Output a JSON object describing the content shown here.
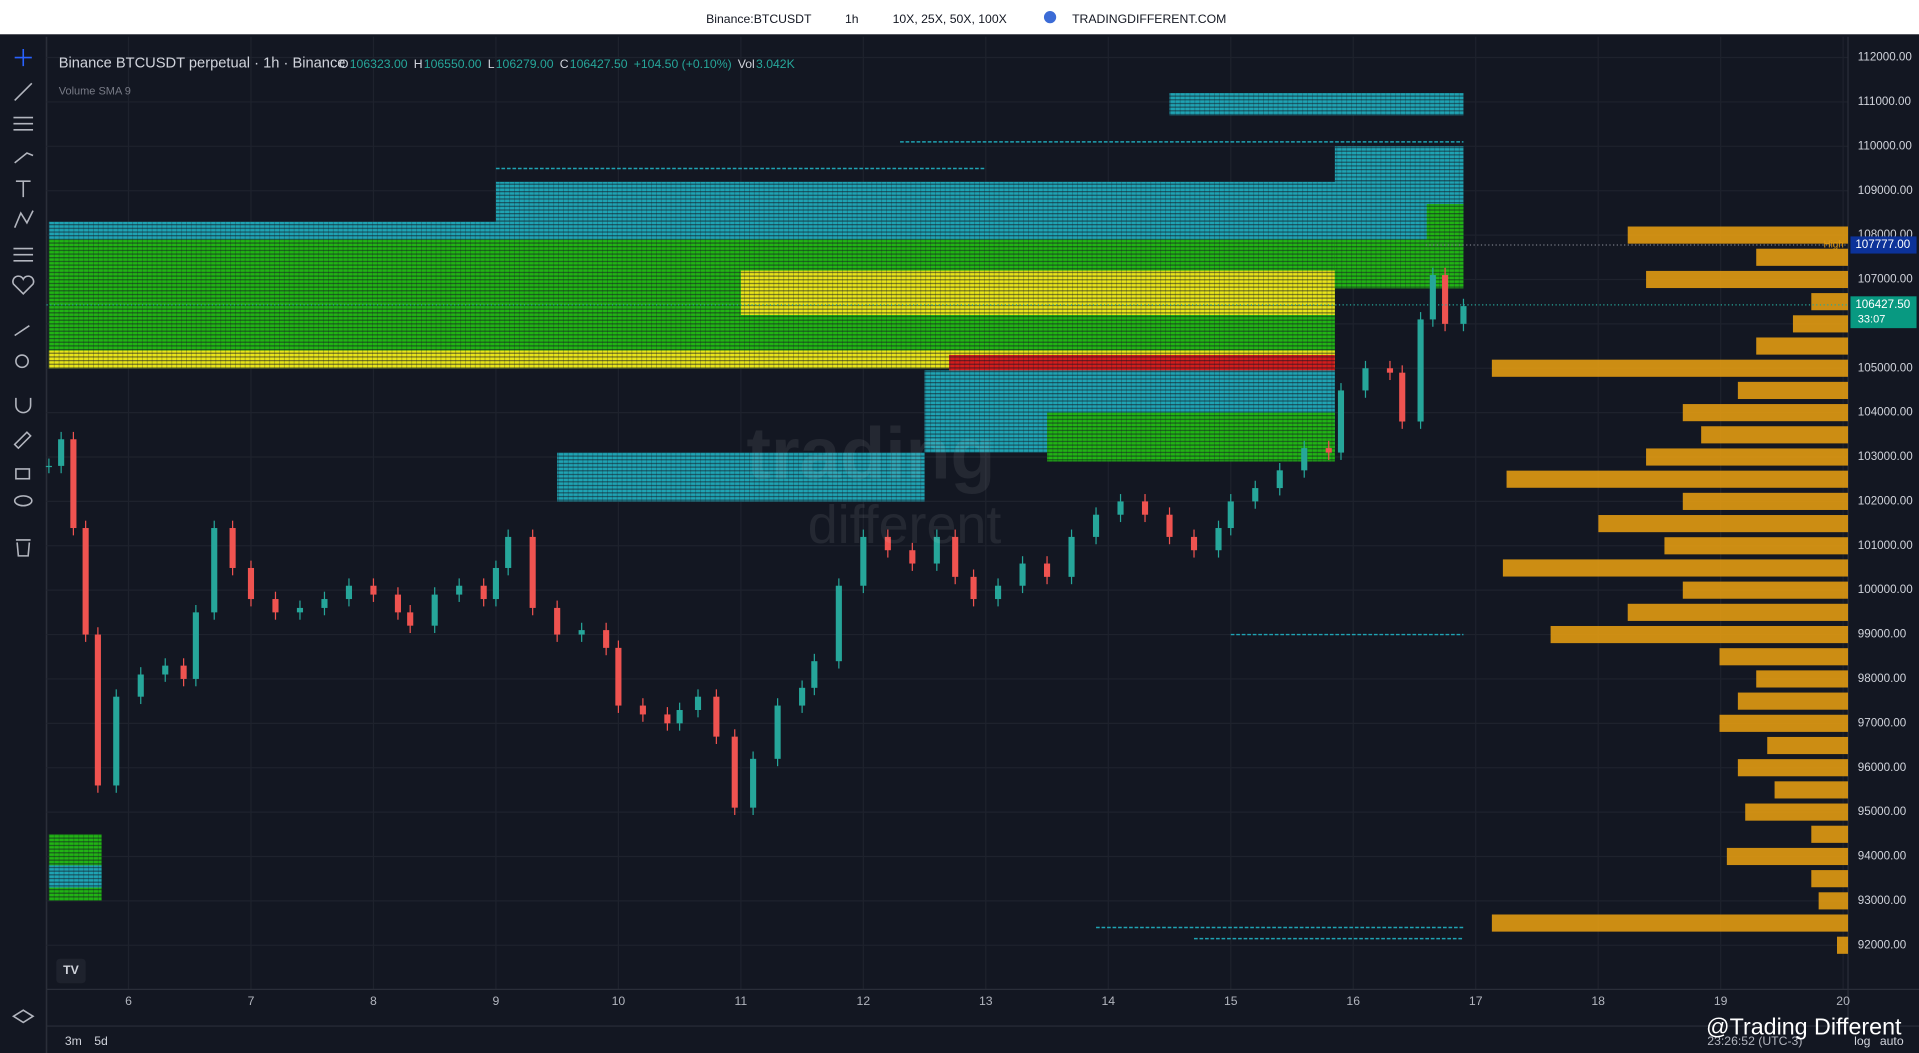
{
  "header": {
    "symbol": "Binance:BTCUSDT",
    "interval": "1h",
    "leverage": "10X, 25X, 50X, 100X",
    "site": "TRADINGDIFFERENT.COM"
  },
  "legend": {
    "title": "Binance BTCUSDT perpetual · 1h · Binance",
    "o_label": "O",
    "o": "106323.00",
    "h_label": "H",
    "h": "106550.00",
    "l_label": "L",
    "l": "106279.00",
    "c_label": "C",
    "c": "106427.50",
    "change": "+104.50 (+0.10%)",
    "vol_label": "Vol",
    "vol": "3.042K",
    "indicator": "Volume SMA 9"
  },
  "chart_data": {
    "type": "candlestick",
    "x": [
      5.35,
      5.45,
      5.55,
      5.65,
      5.75,
      5.9,
      6.1,
      6.3,
      6.45,
      6.55,
      6.7,
      6.85,
      7.0,
      7.2,
      7.4,
      7.6,
      7.8,
      8.0,
      8.2,
      8.3,
      8.5,
      8.7,
      8.9,
      9.0,
      9.1,
      9.3,
      9.5,
      9.7,
      9.9,
      10.0,
      10.2,
      10.4,
      10.5,
      10.65,
      10.8,
      10.95,
      11.1,
      11.3,
      11.5,
      11.6,
      11.8,
      12.0,
      12.2,
      12.4,
      12.6,
      12.75,
      12.9,
      13.1,
      13.3,
      13.5,
      13.7,
      13.9,
      14.1,
      14.3,
      14.5,
      14.7,
      14.9,
      15.0,
      15.2,
      15.4,
      15.6,
      15.8,
      15.9,
      16.1,
      16.3,
      16.4,
      16.55,
      16.65,
      16.75,
      16.9
    ],
    "close": [
      102800,
      103400,
      101400,
      99000,
      95600,
      97600,
      98100,
      98300,
      98000,
      99500,
      101400,
      100500,
      99800,
      99500,
      99600,
      99800,
      100100,
      99900,
      99500,
      99200,
      99900,
      100100,
      99800,
      100500,
      101200,
      99600,
      99000,
      99100,
      98700,
      97400,
      97200,
      97000,
      97300,
      97600,
      96700,
      95100,
      96200,
      97400,
      97800,
      98400,
      100100,
      101200,
      100900,
      100600,
      101200,
      100300,
      99800,
      100100,
      100600,
      100300,
      101200,
      101700,
      102000,
      101700,
      101200,
      100900,
      101400,
      102000,
      102300,
      102700,
      103200,
      103100,
      104500,
      105000,
      104900,
      103800,
      106100,
      107100,
      106000,
      106400
    ],
    "up_color": "#26a69a",
    "down_color": "#ef5350",
    "ylim": [
      92000,
      112000
    ],
    "yticks": [
      {
        "value": 92000,
        "label": "92000.00"
      },
      {
        "value": 93000,
        "label": "93000.00"
      },
      {
        "value": 94000,
        "label": "94000.00"
      },
      {
        "value": 95000,
        "label": "95000.00"
      },
      {
        "value": 96000,
        "label": "96000.00"
      },
      {
        "value": 97000,
        "label": "97000.00"
      },
      {
        "value": 98000,
        "label": "98000.00"
      },
      {
        "value": 99000,
        "label": "99000.00"
      },
      {
        "value": 100000,
        "label": "100000.00"
      },
      {
        "value": 101000,
        "label": "101000.00"
      },
      {
        "value": 102000,
        "label": "102000.00"
      },
      {
        "value": 103000,
        "label": "103000.00"
      },
      {
        "value": 104000,
        "label": "104000.00"
      },
      {
        "value": 105000,
        "label": "105000.00"
      },
      {
        "value": 106000,
        "label": "106000.00"
      },
      {
        "value": 107000,
        "label": "107000.00"
      },
      {
        "value": 108000,
        "label": "108000.00"
      },
      {
        "value": 109000,
        "label": "109000.00"
      },
      {
        "value": 110000,
        "label": "110000.00"
      },
      {
        "value": 111000,
        "label": "111000.00"
      },
      {
        "value": 112000,
        "label": "112000.00"
      }
    ],
    "xlim": [
      5.33,
      19.99
    ],
    "xticks": [
      6,
      7,
      8,
      9,
      10,
      11,
      12,
      13,
      14,
      15,
      16,
      17,
      18,
      19,
      20
    ],
    "heatmap": [
      {
        "from": 5.35,
        "to": 16.9,
        "low": 107900,
        "high": 108300,
        "color": "#1fa3b3"
      },
      {
        "from": 5.35,
        "to": 15.85,
        "low": 105000,
        "high": 107900,
        "color": "#21b414"
      },
      {
        "from": 5.35,
        "to": 15.85,
        "low": 105000,
        "high": 105400,
        "color": "#e8e41a"
      },
      {
        "from": 11,
        "to": 15.85,
        "low": 106200,
        "high": 107200,
        "color": "#e8e41a"
      },
      {
        "from": 12.7,
        "to": 15.85,
        "low": 104950,
        "high": 105300,
        "color": "#d31c1c"
      },
      {
        "from": 12.5,
        "to": 15.85,
        "low": 103100,
        "high": 104950,
        "color": "#1fa3b3"
      },
      {
        "from": 13.5,
        "to": 15.85,
        "low": 102900,
        "high": 104000,
        "color": "#21b414"
      },
      {
        "from": 9.5,
        "to": 12.5,
        "low": 102000,
        "high": 103100,
        "color": "#1fa3b3"
      },
      {
        "from": 9,
        "to": 16.9,
        "low": 108300,
        "high": 109200,
        "color": "#1fa3b3"
      },
      {
        "from": 14.5,
        "to": 16.9,
        "low": 110700,
        "high": 111200,
        "color": "#1fa3b3"
      },
      {
        "from": 15.85,
        "to": 16.9,
        "low": 109200,
        "high": 110000,
        "color": "#1fa3b3"
      },
      {
        "from": 15.85,
        "to": 16.9,
        "low": 106800,
        "high": 107900,
        "color": "#21b414"
      },
      {
        "from": 16.6,
        "to": 16.9,
        "low": 107700,
        "high": 108700,
        "color": "#21b414"
      },
      {
        "from": 5.35,
        "to": 5.78,
        "low": 93000,
        "high": 94500,
        "color": "#21b414"
      },
      {
        "from": 5.35,
        "to": 5.78,
        "low": 93300,
        "high": 93800,
        "color": "#1fa3b3"
      }
    ],
    "levels": [
      {
        "from": 15,
        "to": 16.9,
        "price": 99000
      },
      {
        "from": 13.9,
        "to": 16.9,
        "price": 92400
      },
      {
        "from": 14.7,
        "to": 16.9,
        "price": 92150
      },
      {
        "from": 9,
        "to": 13,
        "price": 109500
      },
      {
        "from": 12.3,
        "to": 16.9,
        "price": 110100
      }
    ],
    "profile_color": "#e19a12",
    "profile_prices": [
      108000,
      107500,
      107000,
      106500,
      106000,
      105500,
      105000,
      104500,
      104000,
      103500,
      103000,
      102500,
      102000,
      101500,
      101000,
      100500,
      100000,
      99500,
      99000,
      98500,
      98000,
      97500,
      97000,
      96500,
      96000,
      95500,
      95000,
      94500,
      94000,
      93500,
      93000,
      92500,
      92000
    ],
    "profile_volumes": [
      60,
      25,
      55,
      10,
      15,
      25,
      97,
      30,
      45,
      40,
      55,
      93,
      45,
      68,
      50,
      94,
      45,
      60,
      81,
      35,
      25,
      30,
      35,
      22,
      30,
      20,
      28,
      10,
      33,
      10,
      8,
      97,
      3
    ],
    "high_label": "High",
    "high_price": {
      "value": 107777,
      "label": "107777.00"
    },
    "last_price": {
      "value": 106427.5,
      "label": "106427.50"
    },
    "countdown": "33:07"
  },
  "footer": {
    "range1": "3m",
    "range2": "5d",
    "time": "23:26:52 (UTC-3)",
    "log": "log",
    "auto": "auto",
    "watermark": "@Trading Different",
    "brand1": "trading",
    "brand2": "different"
  }
}
